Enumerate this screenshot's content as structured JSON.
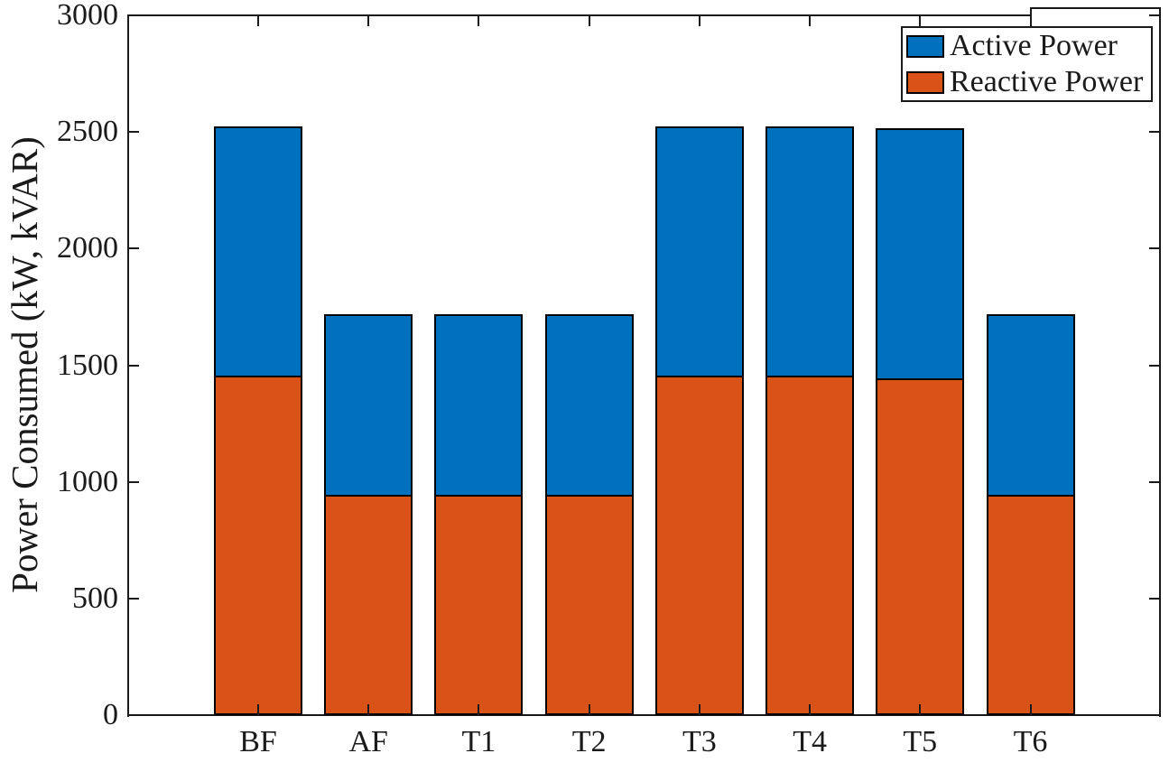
{
  "figure": {
    "background": "#ffffff",
    "axis_color": "#1a1a1a",
    "bar_edge_color": "#000000"
  },
  "legend": {
    "position": "northeast",
    "items": [
      {
        "label": "Active Power",
        "color": "#0072BD"
      },
      {
        "label": "Reactive Power",
        "color": "#D95319"
      }
    ]
  },
  "chart_data": {
    "type": "bar",
    "stacked": true,
    "title": "",
    "xlabel": "",
    "ylabel": "Power Consumed (kW, kVAR)",
    "categories": [
      "BF",
      "AF",
      "T1",
      "T2",
      "T3",
      "T4",
      "T5",
      "T6"
    ],
    "series": [
      {
        "name": "Reactive Power",
        "color": "#D95319",
        "stack_order": "bottom",
        "values": [
          1455,
          945,
          945,
          945,
          1455,
          1455,
          1445,
          945
        ]
      },
      {
        "name": "Active Power",
        "color": "#0072BD",
        "stack_order": "top",
        "values": [
          1070,
          775,
          775,
          775,
          1070,
          1070,
          1070,
          775
        ]
      }
    ],
    "totals": [
      2525,
      1720,
      1720,
      1720,
      2525,
      2525,
      2515,
      1720
    ],
    "ylim": [
      0,
      3000
    ],
    "yticks": [
      0,
      500,
      1000,
      1500,
      2000,
      2500,
      3000
    ],
    "grid": false,
    "tick_direction": "in",
    "box": true,
    "legend_position": "northeast"
  }
}
